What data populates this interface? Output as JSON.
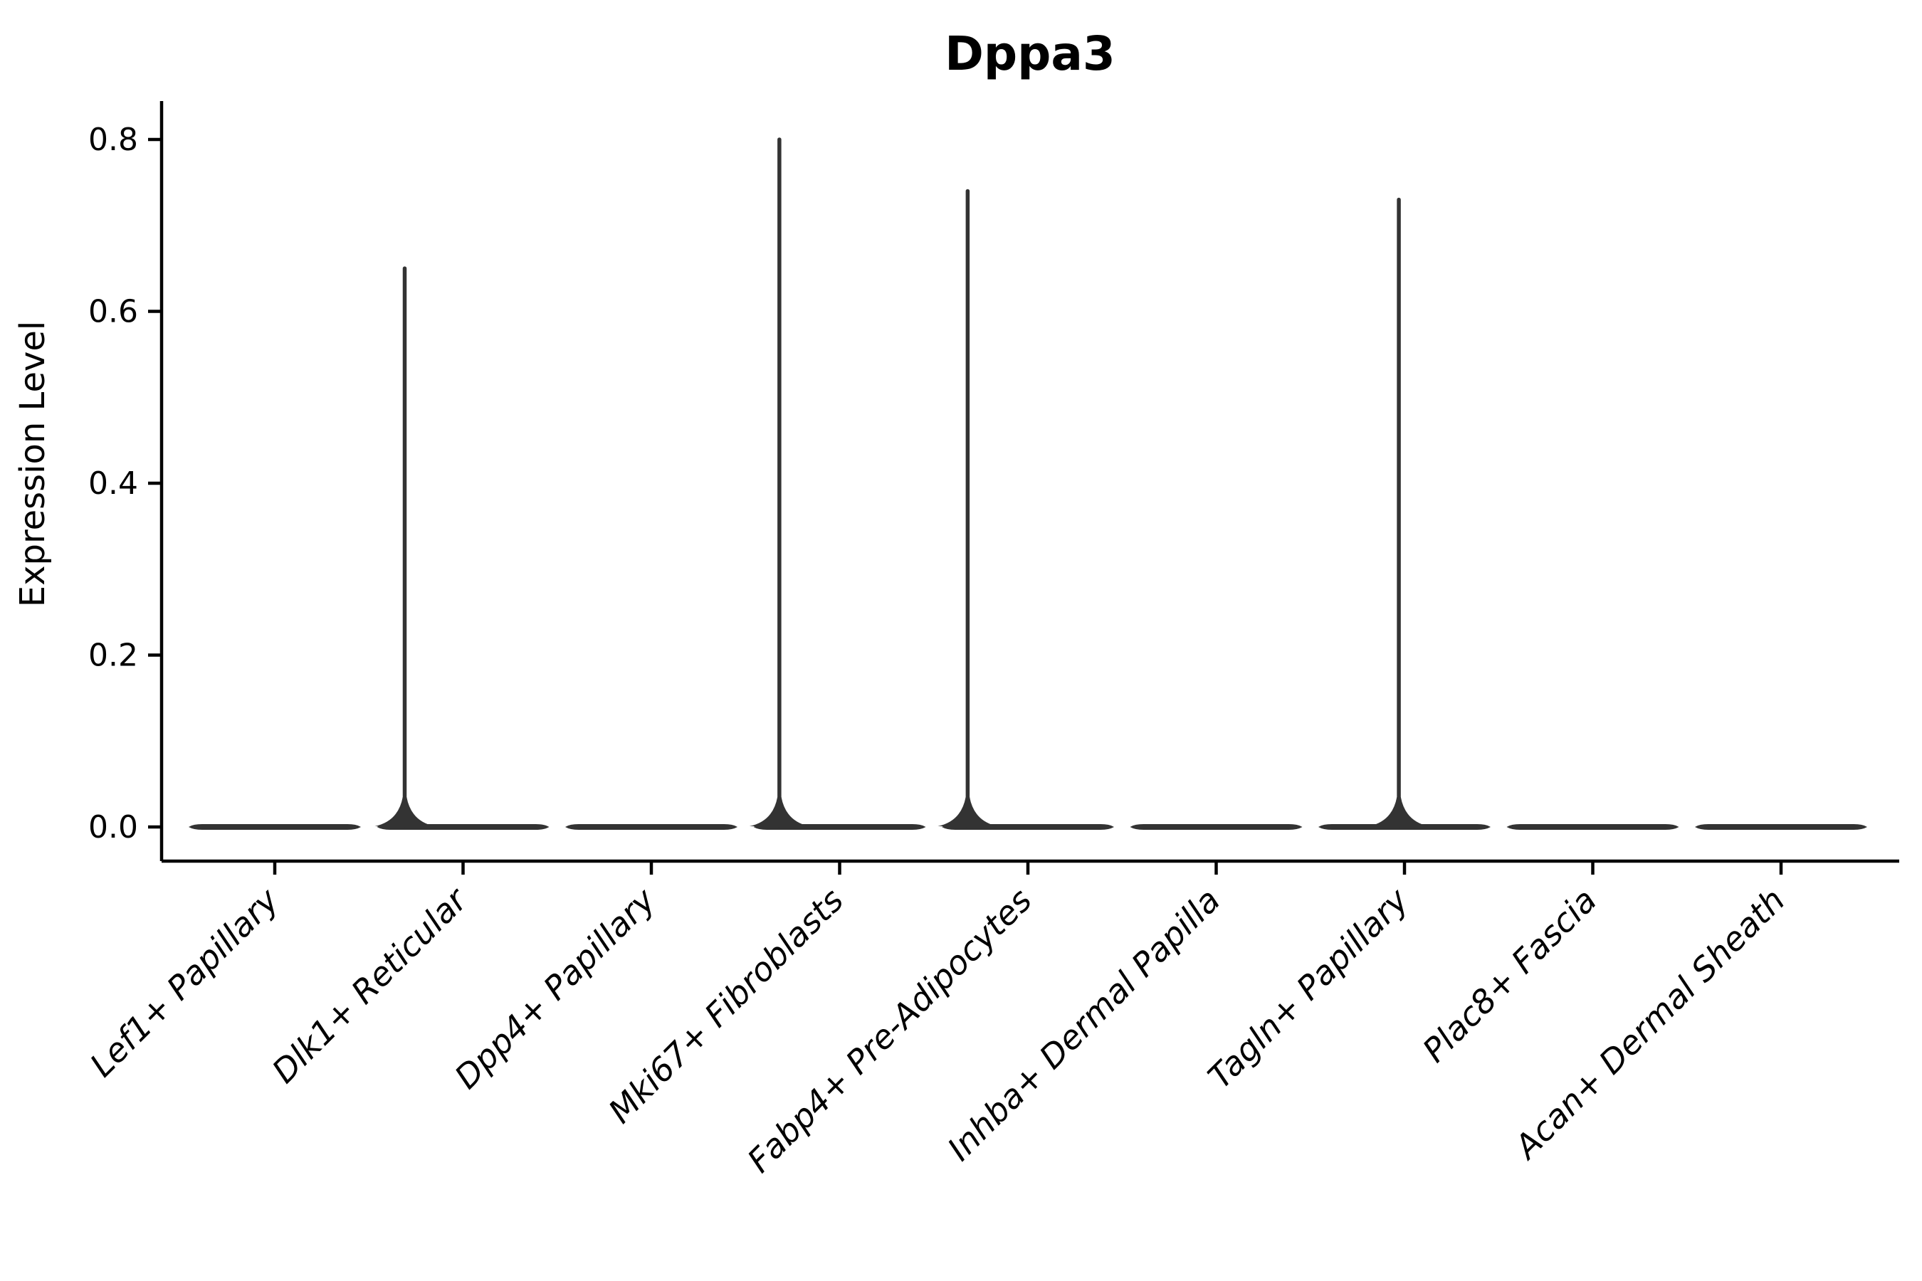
{
  "chart_data": {
    "type": "violin",
    "title": "Dppa3",
    "xlabel": "",
    "ylabel": "Expression Level",
    "ytick_labels": [
      "0.0",
      "0.2",
      "0.4",
      "0.6",
      "0.8"
    ],
    "ytick_values": [
      0.0,
      0.2,
      0.4,
      0.6,
      0.8
    ],
    "ylim": [
      -0.04,
      0.845
    ],
    "grid": false,
    "legend": "none",
    "categories": [
      "Lef1+ Papillary",
      "Dlk1+ Reticular",
      "Dpp4+ Papillary",
      "Mki67+ Fibroblasts",
      "Fabp4+ Pre-Adipocytes",
      "Inhba+ Dermal Papilla",
      "Tagln+ Papillary",
      "Plac8+ Fascia",
      "Acan+ Dermal Sheath"
    ],
    "series": [
      {
        "name": "Lef1+ Papillary",
        "median": 0.0,
        "max_expression": 0.0,
        "has_spike": false,
        "spike_x_offset_units": 0
      },
      {
        "name": "Dlk1+ Reticular",
        "median": 0.0,
        "max_expression": 0.65,
        "has_spike": true,
        "spike_x_offset_units": -0.31
      },
      {
        "name": "Dpp4+ Papillary",
        "median": 0.0,
        "max_expression": 0.0,
        "has_spike": false,
        "spike_x_offset_units": 0
      },
      {
        "name": "Mki67+ Fibroblasts",
        "median": 0.0,
        "max_expression": 0.8,
        "has_spike": true,
        "spike_x_offset_units": -0.32
      },
      {
        "name": "Fabp4+ Pre-Adipocytes",
        "median": 0.0,
        "max_expression": 0.74,
        "has_spike": true,
        "spike_x_offset_units": -0.32
      },
      {
        "name": "Inhba+ Dermal Papilla",
        "median": 0.0,
        "max_expression": 0.0,
        "has_spike": false,
        "spike_x_offset_units": 0
      },
      {
        "name": "Tagln+ Papillary",
        "median": 0.0,
        "max_expression": 0.73,
        "has_spike": true,
        "spike_x_offset_units": -0.03
      },
      {
        "name": "Plac8+ Fascia",
        "median": 0.0,
        "max_expression": 0.0,
        "has_spike": false,
        "spike_x_offset_units": 0
      },
      {
        "name": "Acan+ Dermal Sheath",
        "median": 0.0,
        "max_expression": 0.0,
        "has_spike": false,
        "spike_x_offset_units": 0
      }
    ]
  }
}
